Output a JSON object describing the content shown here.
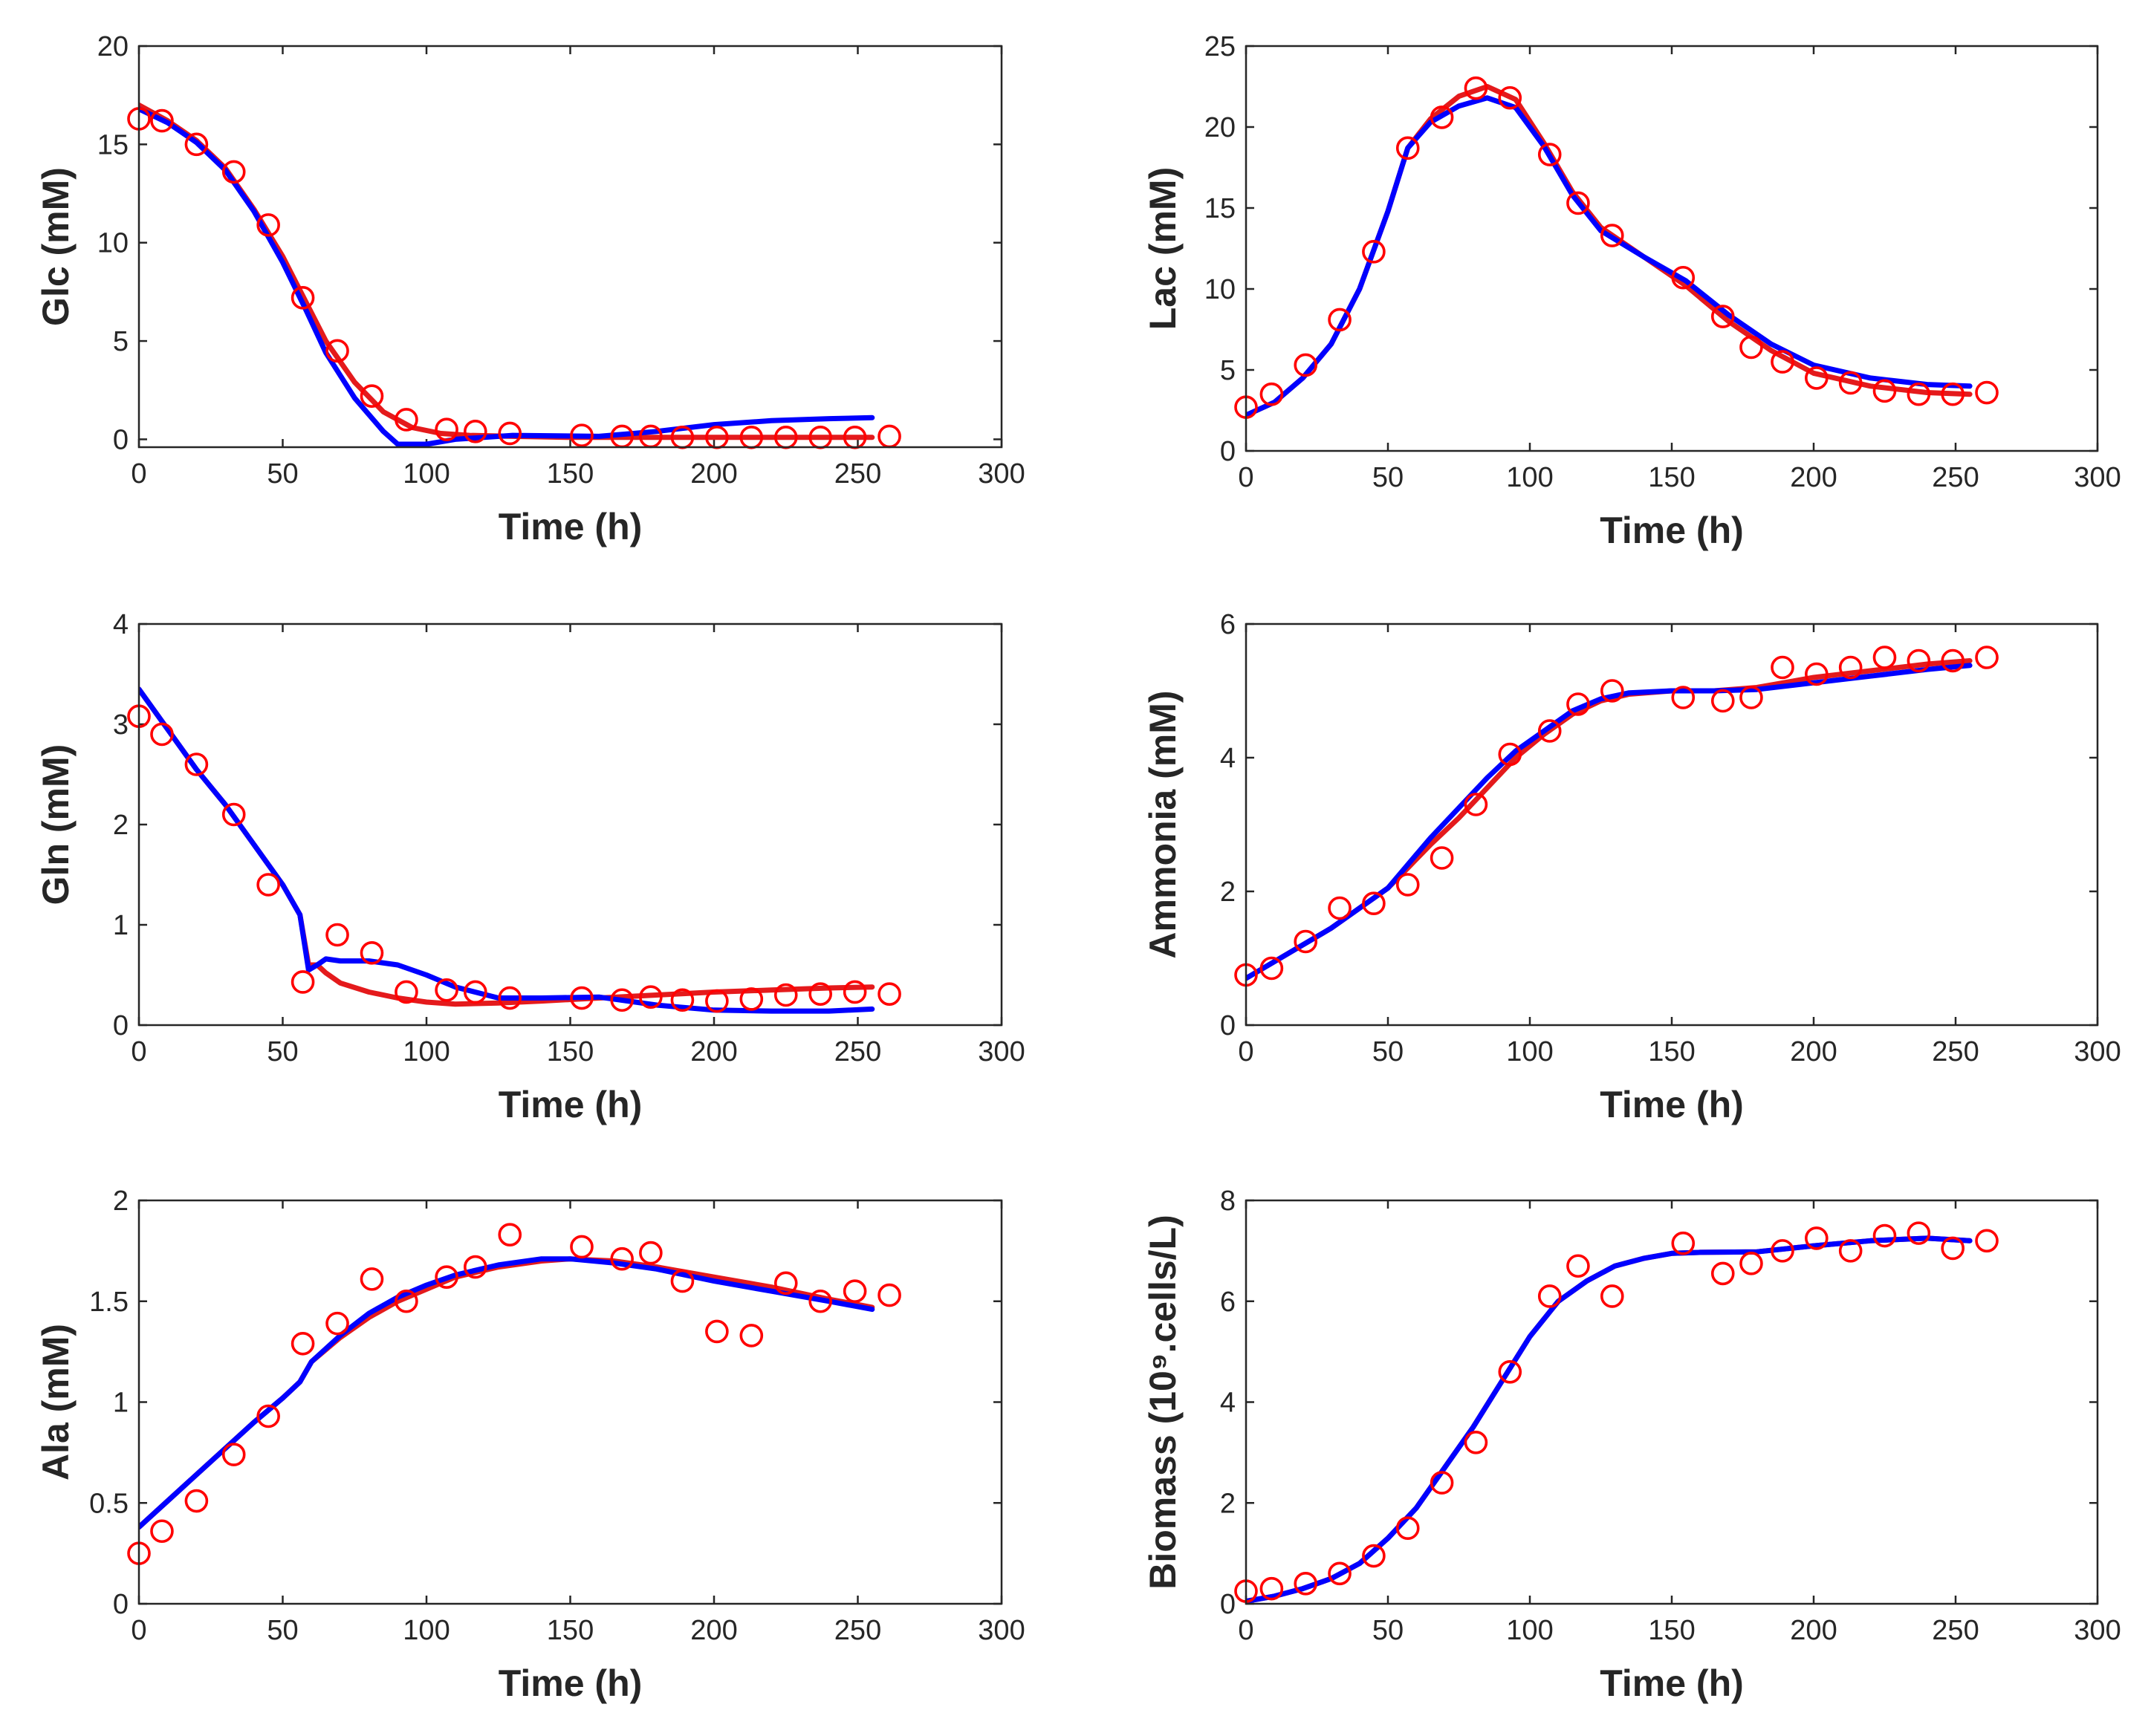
{
  "colors": {
    "experimental": "#ff0000",
    "model_red": "#e41a1c",
    "model_blue": "#0000ff",
    "axis": "#262626"
  },
  "chart_data": [
    {
      "id": "glc",
      "type": "line",
      "ylabel": "Glc (mM)",
      "xlabel": "Time (h)",
      "xlim": [
        0,
        300
      ],
      "ylim": [
        -0.4,
        20
      ],
      "xticks": [
        "0",
        "50",
        "100",
        "150",
        "200",
        "250",
        "300"
      ],
      "yticks": [
        "0",
        "5",
        "10",
        "15",
        "20"
      ],
      "series": [
        {
          "name": "experimental",
          "kind": "markers",
          "color": "#ff0000",
          "x": [
            0,
            8,
            20,
            33,
            45,
            57,
            69,
            81,
            93,
            107,
            117,
            129,
            154,
            168,
            178,
            189,
            201,
            213,
            225,
            237,
            249,
            261
          ],
          "y": [
            16.3,
            16.2,
            15.0,
            13.6,
            10.9,
            7.2,
            4.5,
            2.2,
            1.0,
            0.5,
            0.4,
            0.3,
            0.2,
            0.15,
            0.15,
            0.1,
            0.1,
            0.1,
            0.1,
            0.1,
            0.1,
            0.15
          ]
        },
        {
          "name": "model-red",
          "kind": "line",
          "color": "#e41a1c",
          "x": [
            0,
            10,
            20,
            30,
            40,
            50,
            58,
            65,
            75,
            85,
            95,
            105,
            115,
            130,
            150,
            180,
            210,
            240,
            255
          ],
          "y": [
            17.0,
            16.2,
            15.2,
            13.8,
            11.7,
            9.3,
            7.0,
            5.0,
            2.9,
            1.4,
            0.6,
            0.3,
            0.2,
            0.15,
            0.1,
            0.1,
            0.1,
            0.1,
            0.1
          ]
        },
        {
          "name": "model-blue",
          "kind": "line",
          "color": "#0000ff",
          "x": [
            0,
            10,
            20,
            30,
            40,
            50,
            58,
            65,
            75,
            85,
            90,
            100,
            110,
            130,
            160,
            180,
            200,
            220,
            240,
            255
          ],
          "y": [
            16.8,
            16.1,
            15.1,
            13.7,
            11.6,
            9.0,
            6.6,
            4.4,
            2.1,
            0.4,
            -0.25,
            -0.25,
            0.0,
            0.2,
            0.15,
            0.4,
            0.75,
            0.95,
            1.05,
            1.1
          ]
        }
      ]
    },
    {
      "id": "lac",
      "type": "line",
      "ylabel": "Lac (mM)",
      "xlabel": "Time (h)",
      "xlim": [
        0,
        300
      ],
      "ylim": [
        0,
        25
      ],
      "xticks": [
        "0",
        "50",
        "100",
        "150",
        "200",
        "250",
        "300"
      ],
      "yticks": [
        "0",
        "5",
        "10",
        "15",
        "20",
        "25"
      ],
      "series": [
        {
          "name": "experimental",
          "kind": "markers",
          "color": "#ff0000",
          "x": [
            0,
            9,
            21,
            33,
            45,
            57,
            69,
            81,
            93,
            107,
            117,
            129,
            154,
            168,
            178,
            189,
            201,
            213,
            225,
            237,
            249,
            261
          ],
          "y": [
            2.7,
            3.5,
            5.3,
            8.1,
            12.3,
            18.7,
            20.6,
            22.4,
            21.8,
            18.3,
            15.3,
            13.3,
            10.7,
            8.3,
            6.4,
            5.5,
            4.5,
            4.2,
            3.7,
            3.5,
            3.5,
            3.6
          ]
        },
        {
          "name": "model-red",
          "kind": "line",
          "color": "#e41a1c",
          "x": [
            0,
            10,
            20,
            30,
            40,
            50,
            57,
            65,
            75,
            85,
            95,
            105,
            115,
            125,
            140,
            155,
            170,
            185,
            200,
            220,
            240,
            255
          ],
          "y": [
            2.2,
            3.0,
            4.5,
            6.6,
            10.0,
            14.8,
            18.7,
            20.5,
            21.9,
            22.5,
            21.7,
            19.0,
            16.0,
            13.8,
            12.0,
            10.2,
            8.0,
            6.2,
            4.8,
            4.0,
            3.6,
            3.5
          ]
        },
        {
          "name": "model-blue",
          "kind": "line",
          "color": "#0000ff",
          "x": [
            0,
            10,
            20,
            30,
            40,
            50,
            57,
            65,
            75,
            85,
            95,
            105,
            115,
            125,
            140,
            155,
            170,
            185,
            200,
            220,
            240,
            255
          ],
          "y": [
            2.2,
            3.0,
            4.5,
            6.6,
            10.0,
            14.8,
            18.7,
            20.3,
            21.3,
            21.8,
            21.2,
            18.8,
            15.8,
            13.6,
            12.0,
            10.5,
            8.4,
            6.6,
            5.3,
            4.5,
            4.1,
            4.0
          ]
        }
      ]
    },
    {
      "id": "gln",
      "type": "line",
      "ylabel": "Gln (mM)",
      "xlabel": "Time (h)",
      "xlim": [
        0,
        300
      ],
      "ylim": [
        0,
        4
      ],
      "xticks": [
        "0",
        "50",
        "100",
        "150",
        "200",
        "250",
        "300"
      ],
      "yticks": [
        "0",
        "1",
        "2",
        "3",
        "4"
      ],
      "series": [
        {
          "name": "experimental",
          "kind": "markers",
          "color": "#ff0000",
          "x": [
            0,
            8,
            20,
            33,
            45,
            57,
            69,
            81,
            93,
            107,
            117,
            129,
            154,
            168,
            178,
            189,
            201,
            213,
            225,
            237,
            249,
            261
          ],
          "y": [
            3.08,
            2.9,
            2.6,
            2.1,
            1.4,
            0.43,
            0.9,
            0.72,
            0.33,
            0.35,
            0.33,
            0.27,
            0.27,
            0.25,
            0.28,
            0.25,
            0.24,
            0.26,
            0.3,
            0.31,
            0.33,
            0.31
          ]
        },
        {
          "name": "model-red",
          "kind": "line",
          "color": "#e41a1c",
          "x": [
            0,
            10,
            20,
            30,
            40,
            50,
            56,
            59,
            62,
            65,
            70,
            80,
            90,
            100,
            110,
            125,
            140,
            160,
            180,
            200,
            220,
            240,
            255
          ],
          "y": [
            3.35,
            2.95,
            2.55,
            2.2,
            1.8,
            1.4,
            1.1,
            0.6,
            0.6,
            0.52,
            0.42,
            0.33,
            0.27,
            0.23,
            0.21,
            0.22,
            0.24,
            0.27,
            0.3,
            0.33,
            0.35,
            0.37,
            0.38
          ]
        },
        {
          "name": "model-blue",
          "kind": "line",
          "color": "#0000ff",
          "x": [
            0,
            10,
            20,
            30,
            40,
            50,
            56,
            59,
            62,
            65,
            70,
            80,
            90,
            100,
            110,
            125,
            140,
            160,
            180,
            200,
            220,
            240,
            255
          ],
          "y": [
            3.35,
            2.95,
            2.55,
            2.2,
            1.8,
            1.4,
            1.1,
            0.55,
            0.6,
            0.66,
            0.64,
            0.64,
            0.6,
            0.5,
            0.38,
            0.27,
            0.27,
            0.28,
            0.2,
            0.15,
            0.14,
            0.14,
            0.16
          ]
        }
      ]
    },
    {
      "id": "ammonia",
      "type": "line",
      "ylabel": "Ammonia (mM)",
      "xlabel": "Time (h)",
      "xlim": [
        0,
        300
      ],
      "ylim": [
        0,
        6
      ],
      "xticks": [
        "0",
        "50",
        "100",
        "150",
        "200",
        "250",
        "300"
      ],
      "yticks": [
        "0",
        "2",
        "4",
        "6"
      ],
      "series": [
        {
          "name": "experimental",
          "kind": "markers",
          "color": "#ff0000",
          "x": [
            0,
            9,
            21,
            33,
            45,
            57,
            69,
            81,
            93,
            107,
            117,
            129,
            154,
            168,
            178,
            189,
            201,
            213,
            225,
            237,
            249,
            261
          ],
          "y": [
            0.75,
            0.85,
            1.25,
            1.75,
            1.82,
            2.1,
            2.5,
            3.3,
            4.05,
            4.4,
            4.8,
            5.0,
            4.9,
            4.85,
            4.9,
            5.35,
            5.25,
            5.35,
            5.5,
            5.45,
            5.45,
            5.5
          ]
        },
        {
          "name": "model-red",
          "kind": "line",
          "color": "#e41a1c",
          "x": [
            0,
            10,
            20,
            30,
            40,
            50,
            57,
            65,
            75,
            85,
            95,
            105,
            115,
            125,
            135,
            150,
            165,
            180,
            200,
            220,
            240,
            255
          ],
          "y": [
            0.7,
            0.95,
            1.2,
            1.45,
            1.75,
            2.05,
            2.35,
            2.7,
            3.1,
            3.55,
            4.0,
            4.35,
            4.65,
            4.85,
            4.95,
            5.0,
            5.0,
            5.05,
            5.2,
            5.3,
            5.4,
            5.45
          ]
        },
        {
          "name": "model-blue",
          "kind": "line",
          "color": "#0000ff",
          "x": [
            0,
            10,
            20,
            30,
            40,
            50,
            57,
            65,
            75,
            85,
            95,
            105,
            115,
            125,
            135,
            150,
            165,
            180,
            200,
            220,
            240,
            255
          ],
          "y": [
            0.7,
            0.95,
            1.2,
            1.45,
            1.75,
            2.05,
            2.4,
            2.8,
            3.25,
            3.7,
            4.1,
            4.4,
            4.7,
            4.88,
            4.97,
            5.0,
            5.0,
            5.02,
            5.12,
            5.22,
            5.32,
            5.38
          ]
        }
      ]
    },
    {
      "id": "ala",
      "type": "line",
      "ylabel": "Ala (mM)",
      "xlabel": "Time (h)",
      "xlim": [
        0,
        300
      ],
      "ylim": [
        0,
        2
      ],
      "xticks": [
        "0",
        "50",
        "100",
        "150",
        "200",
        "250",
        "300"
      ],
      "yticks": [
        "0",
        "0.5",
        "1",
        "1.5",
        "2"
      ],
      "series": [
        {
          "name": "experimental",
          "kind": "markers",
          "color": "#ff0000",
          "x": [
            0,
            8,
            20,
            33,
            45,
            57,
            69,
            81,
            93,
            107,
            117,
            129,
            154,
            168,
            178,
            189,
            201,
            213,
            225,
            237,
            249,
            261
          ],
          "y": [
            0.25,
            0.36,
            0.51,
            0.74,
            0.93,
            1.29,
            1.39,
            1.61,
            1.5,
            1.62,
            1.67,
            1.83,
            1.77,
            1.71,
            1.74,
            1.6,
            1.35,
            1.33,
            1.59,
            1.5,
            1.55,
            1.53
          ]
        },
        {
          "name": "model-red",
          "kind": "line",
          "color": "#e41a1c",
          "x": [
            0,
            10,
            20,
            30,
            40,
            50,
            56,
            60,
            70,
            80,
            90,
            100,
            110,
            125,
            140,
            150,
            165,
            180,
            200,
            220,
            240,
            255
          ],
          "y": [
            0.38,
            0.51,
            0.64,
            0.77,
            0.9,
            1.02,
            1.1,
            1.2,
            1.32,
            1.42,
            1.5,
            1.56,
            1.62,
            1.67,
            1.7,
            1.71,
            1.7,
            1.67,
            1.62,
            1.57,
            1.51,
            1.47
          ]
        },
        {
          "name": "model-blue",
          "kind": "line",
          "color": "#0000ff",
          "x": [
            0,
            10,
            20,
            30,
            40,
            50,
            56,
            60,
            70,
            80,
            90,
            100,
            110,
            125,
            140,
            150,
            165,
            180,
            200,
            220,
            240,
            255
          ],
          "y": [
            0.38,
            0.51,
            0.64,
            0.77,
            0.9,
            1.02,
            1.1,
            1.2,
            1.33,
            1.44,
            1.52,
            1.58,
            1.63,
            1.68,
            1.71,
            1.71,
            1.69,
            1.66,
            1.6,
            1.55,
            1.5,
            1.46
          ]
        }
      ]
    },
    {
      "id": "biomass",
      "type": "line",
      "ylabel": "Biomass (10⁹.cells/L)",
      "xlabel": "Time (h)",
      "xlim": [
        0,
        300
      ],
      "ylim": [
        0,
        8
      ],
      "xticks": [
        "0",
        "50",
        "100",
        "150",
        "200",
        "250",
        "300"
      ],
      "yticks": [
        "0",
        "2",
        "4",
        "6",
        "8"
      ],
      "series": [
        {
          "name": "experimental",
          "kind": "markers",
          "color": "#ff0000",
          "x": [
            0,
            9,
            21,
            33,
            45,
            57,
            69,
            81,
            93,
            107,
            117,
            129,
            154,
            168,
            178,
            189,
            201,
            213,
            225,
            237,
            249,
            261
          ],
          "y": [
            0.25,
            0.3,
            0.4,
            0.6,
            0.95,
            1.5,
            2.4,
            3.2,
            4.6,
            6.1,
            6.7,
            6.1,
            7.15,
            6.55,
            6.75,
            7.0,
            7.25,
            7.0,
            7.3,
            7.35,
            7.05,
            7.2
          ]
        },
        {
          "name": "model-red",
          "kind": "line",
          "color": "#e41a1c",
          "x": [
            0,
            10,
            20,
            30,
            40,
            50,
            60,
            70,
            80,
            90,
            100,
            110,
            120,
            130,
            140,
            150,
            160,
            180,
            200,
            220,
            240,
            255
          ],
          "y": [
            0.05,
            0.15,
            0.3,
            0.5,
            0.8,
            1.3,
            1.9,
            2.7,
            3.5,
            4.4,
            5.3,
            6.0,
            6.4,
            6.7,
            6.85,
            6.95,
            6.97,
            6.98,
            7.1,
            7.2,
            7.25,
            7.2
          ]
        },
        {
          "name": "model-blue",
          "kind": "line",
          "color": "#0000ff",
          "x": [
            0,
            10,
            20,
            30,
            40,
            50,
            60,
            70,
            80,
            90,
            100,
            110,
            120,
            130,
            140,
            150,
            160,
            180,
            200,
            220,
            240,
            255
          ],
          "y": [
            0.05,
            0.15,
            0.3,
            0.5,
            0.8,
            1.3,
            1.9,
            2.7,
            3.5,
            4.4,
            5.3,
            6.0,
            6.4,
            6.7,
            6.85,
            6.95,
            6.97,
            6.98,
            7.1,
            7.2,
            7.25,
            7.2
          ]
        }
      ]
    }
  ]
}
